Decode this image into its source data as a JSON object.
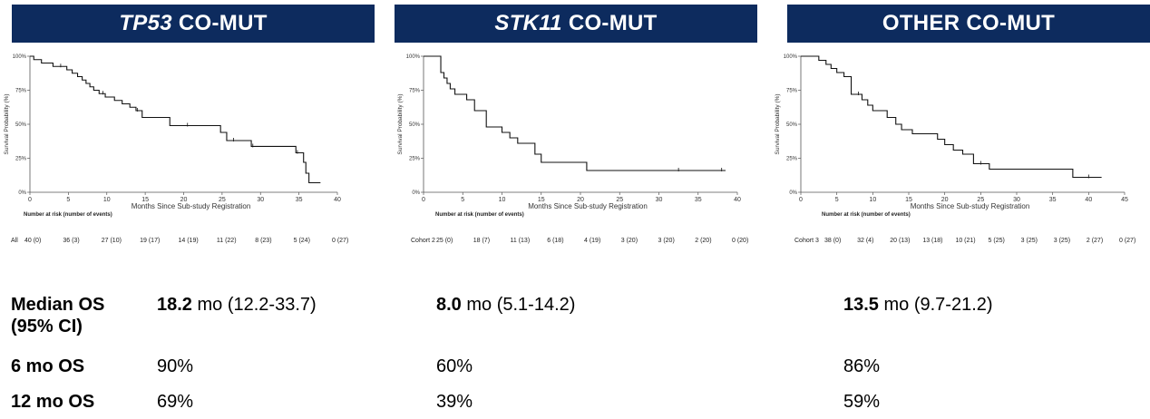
{
  "chart_data": [
    {
      "type": "line",
      "title": "CO-MUT",
      "title_italic": "TP53",
      "xlabel": "Months Since Sub-study Registration",
      "ylabel": "Survival Probability (%)",
      "xlim": [
        0,
        40
      ],
      "ylim": [
        0,
        100
      ],
      "xticks": [
        "0",
        "5",
        "10",
        "15",
        "20",
        "25",
        "30",
        "35",
        "40"
      ],
      "yticks": [
        "0%",
        "25%",
        "50%",
        "75%",
        "100%"
      ],
      "grid": false,
      "x": [
        0,
        0.5,
        1.5,
        2.2,
        3.0,
        4.8,
        5.5,
        6.2,
        6.8,
        7.3,
        7.8,
        8.3,
        9.0,
        9.8,
        11.0,
        12.0,
        13.0,
        13.8,
        14.6,
        18.2,
        24.8,
        25.6,
        28.8,
        34.6,
        35.6,
        35.9,
        36.3,
        37.8
      ],
      "y": [
        100,
        97.5,
        95,
        95,
        92.5,
        90,
        87.5,
        85,
        82.5,
        80,
        77.5,
        75,
        72.5,
        70,
        67.5,
        65,
        62.5,
        60,
        55,
        49,
        44,
        38,
        33.7,
        29,
        22,
        14,
        7,
        7
      ],
      "censor_x": [
        4.0,
        9.5,
        14.0,
        20.5,
        26.5,
        29.0,
        34.8
      ],
      "risk_table": {
        "title": "Number at risk (number of events)",
        "row_label": "All",
        "values": [
          "40 (0)",
          "36 (3)",
          "27 (10)",
          "19 (17)",
          "14 (19)",
          "11 (22)",
          "8 (23)",
          "5 (24)",
          "0 (27)"
        ]
      }
    },
    {
      "type": "line",
      "title": "CO-MUT",
      "title_italic": "STK11",
      "xlabel": "Months Since Sub-study Registration",
      "ylabel": "Survival Probability (%)",
      "xlim": [
        0,
        40
      ],
      "ylim": [
        0,
        100
      ],
      "xticks": [
        "0",
        "5",
        "10",
        "15",
        "20",
        "25",
        "30",
        "35",
        "40"
      ],
      "yticks": [
        "0%",
        "25%",
        "50%",
        "75%",
        "100%"
      ],
      "grid": false,
      "x": [
        0,
        2.2,
        2.6,
        3.0,
        3.4,
        4.0,
        5.5,
        6.5,
        8.0,
        10.0,
        11.0,
        12.0,
        14.2,
        15.0,
        20.8,
        38.5
      ],
      "y": [
        100,
        88,
        84,
        80,
        76,
        72,
        68,
        60,
        48,
        44,
        40,
        36,
        28,
        22,
        16,
        16
      ],
      "censor_x": [
        32.5,
        38.0
      ],
      "risk_table": {
        "title": "Number at risk (number of events)",
        "row_label": "Cohort 2",
        "values": [
          "25 (0)",
          "18 (7)",
          "11 (13)",
          "6 (18)",
          "4 (19)",
          "3 (20)",
          "3 (20)",
          "2 (20)",
          "0 (20)"
        ]
      }
    },
    {
      "type": "line",
      "title": "OTHER CO-MUT",
      "title_italic": "",
      "xlabel": "Months Since Sub-study Registration",
      "ylabel": "Survival Probability (%)",
      "xlim": [
        0,
        45
      ],
      "ylim": [
        0,
        100
      ],
      "xticks": [
        "0",
        "5",
        "10",
        "15",
        "20",
        "25",
        "30",
        "35",
        "40",
        "45"
      ],
      "yticks": [
        "0%",
        "25%",
        "50%",
        "75%",
        "100%"
      ],
      "grid": false,
      "x": [
        0,
        2.5,
        3.5,
        4.2,
        5.0,
        6.0,
        7.0,
        8.5,
        9.3,
        10.0,
        12.0,
        13.2,
        14.0,
        15.5,
        19.0,
        20.0,
        21.2,
        22.5,
        24.0,
        26.2,
        37.8,
        41.8
      ],
      "y": [
        100,
        97,
        94,
        91,
        88,
        85,
        72,
        68,
        64,
        60,
        55,
        50,
        46,
        43,
        39,
        35,
        31,
        28,
        21,
        17,
        11,
        11
      ],
      "censor_x": [
        8.0,
        25.0,
        40.0
      ],
      "risk_table": {
        "title": "Number at risk (number of events)",
        "row_label": "Cohort 3",
        "values": [
          "38 (0)",
          "32 (4)",
          "20 (13)",
          "13 (18)",
          "10 (21)",
          "5 (25)",
          "3 (25)",
          "3 (25)",
          "2 (27)",
          "0 (27)"
        ]
      }
    }
  ],
  "stats": {
    "labels": {
      "median_os": "Median OS",
      "median_os_ci": "(95% CI)",
      "os6": "6 mo OS",
      "os12": "12 mo OS"
    },
    "columns": [
      {
        "median_bold": "18.2",
        "median_rest": " mo (12.2-33.7)",
        "os6": "90%",
        "os12": "69%"
      },
      {
        "median_bold": "8.0",
        "median_rest": " mo (5.1-14.2)",
        "os6": "60%",
        "os12": "39%"
      },
      {
        "median_bold": "13.5",
        "median_rest": " mo (9.7-21.2)",
        "os6": "86%",
        "os12": "59%"
      }
    ]
  }
}
